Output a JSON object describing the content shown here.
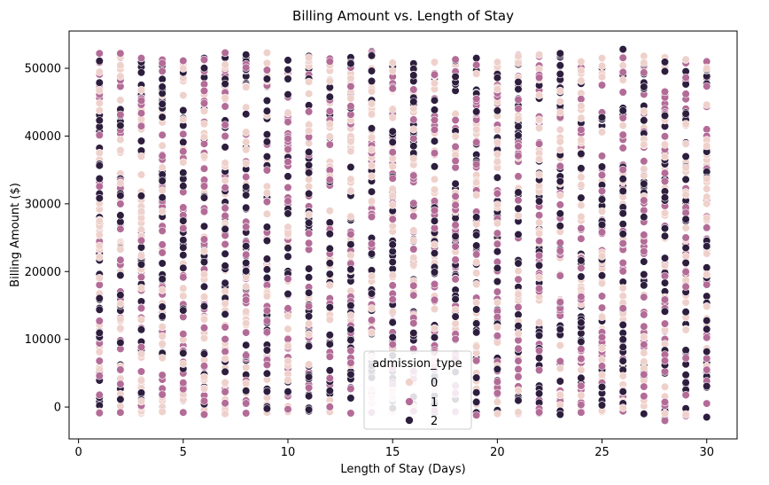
{
  "chart_data": {
    "type": "scatter",
    "title": "Billing Amount vs. Length of Stay",
    "xlabel": "Length of Stay (Days)",
    "ylabel": "Billing Amount ($)",
    "xlim": [
      -0.45,
      31.45
    ],
    "ylim": [
      -4700,
      55500
    ],
    "xticks": [
      0,
      5,
      10,
      15,
      20,
      25,
      30
    ],
    "yticks": [
      0,
      10000,
      20000,
      30000,
      40000,
      50000
    ],
    "grid": false,
    "legend": {
      "title": "admission_type",
      "placement": "lower-center",
      "entries": [
        {
          "label": "0",
          "color": "#efd1cb"
        },
        {
          "label": "1",
          "color": "#b36c97"
        },
        {
          "label": "2",
          "color": "#2d1e3e"
        }
      ]
    },
    "series": [
      {
        "name": "0",
        "color": "#efd1cb"
      },
      {
        "name": "1",
        "color": "#b36c97"
      },
      {
        "name": "2",
        "color": "#2d1e3e"
      }
    ],
    "x": [
      1,
      2,
      3,
      4,
      5,
      6,
      7,
      8,
      9,
      10,
      11,
      12,
      13,
      14,
      15,
      16,
      17,
      18,
      19,
      20,
      21,
      22,
      23,
      24,
      25,
      26,
      27,
      28,
      29,
      30
    ],
    "y_min": [
      -900,
      -800,
      -900,
      -700,
      -800,
      -1100,
      -1000,
      -900,
      -800,
      -700,
      -600,
      -700,
      -900,
      -800,
      -700,
      -600,
      -800,
      -700,
      -1200,
      -1000,
      -1000,
      -900,
      -1100,
      -800,
      -700,
      -600,
      -1000,
      -2000,
      -1300,
      -1500
    ],
    "y_max": [
      52200,
      52200,
      51500,
      51300,
      51100,
      51500,
      52300,
      52000,
      52300,
      51200,
      51800,
      51400,
      51600,
      52500,
      50800,
      50700,
      50900,
      51300,
      51500,
      50900,
      52000,
      52000,
      52200,
      51000,
      51500,
      52800,
      51800,
      51600,
      51300,
      51000
    ]
  }
}
